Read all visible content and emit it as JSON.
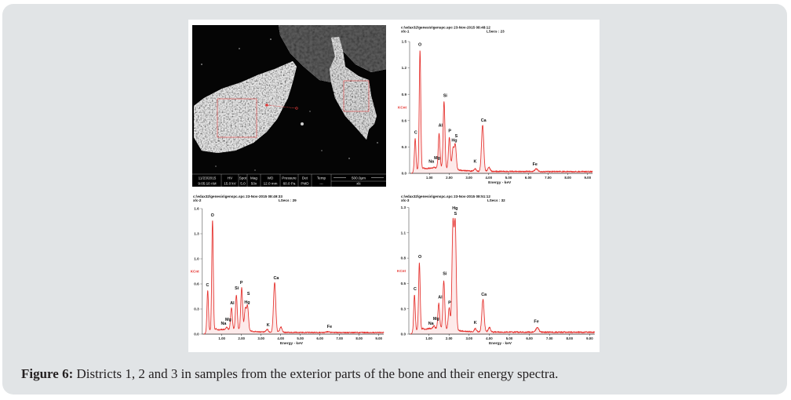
{
  "figure": {
    "caption_label": "Figure 6:",
    "caption_text": " Districts 1, 2 and 3 in samples from the exterior parts of the bone and their energy spectra."
  },
  "colors": {
    "panel_background": "#e1e4e6",
    "spectrum_line": "#e5302c",
    "ylabel": "#e5302c",
    "sem_annotation": "#e03a3a"
  },
  "sem_image": {
    "databar": {
      "columns": [
        {
          "header": "11/23/2015",
          "value": "9:05:10 AM"
        },
        {
          "header": "HV",
          "value": "15.0 kV"
        },
        {
          "header": "Spot",
          "value": "5.0"
        },
        {
          "header": "Mag",
          "value": "50x"
        },
        {
          "header": "WD",
          "value": "12.0 mm"
        },
        {
          "header": "Pressure",
          "value": "60.0 Pa"
        },
        {
          "header": "Det",
          "value": "PMD"
        },
        {
          "header": "Temp",
          "value": "---"
        }
      ],
      "scale_bar": "500.0µm",
      "label": "xlc"
    }
  },
  "chart_data": [
    {
      "type": "line",
      "title": "c:\\edax32\\genesis\\genspc.spc  23-Nov-2015 08:48:12",
      "sample": "xlc-1",
      "lsecs": "LSecs : 23",
      "xlabel": "Energy - keV",
      "ylabel": "KCnt",
      "xlim": [
        0,
        9.25
      ],
      "ylim": [
        0,
        1.5
      ],
      "grid": false,
      "x_ticks": [
        1,
        2,
        3,
        4,
        5,
        6,
        7,
        8,
        9
      ],
      "x_tick_labels": [
        "1.00",
        "2.00",
        "3.00",
        "4.00",
        "5.00",
        "6.00",
        "7.00",
        "8.00",
        "9.00"
      ],
      "y_ticks": [
        0,
        0.3,
        0.6,
        0.9,
        1.2,
        1.5
      ],
      "y_tick_labels": [
        "0.0",
        "0.3",
        "0.6",
        "0.9",
        "1.2",
        "1.5"
      ],
      "peaks": [
        {
          "element": "C",
          "energy": 0.28,
          "kcnt": 0.4,
          "label_at": [
            0.31,
            0.45
          ]
        },
        {
          "element": "O",
          "energy": 0.525,
          "kcnt": 1.4,
          "label_at": [
            0.52,
            1.45
          ]
        },
        {
          "element": "",
          "energy": 0.7,
          "kcnt": 0.06
        },
        {
          "element": "Na",
          "energy": 1.04,
          "kcnt": 0.05,
          "label_at": [
            1.1,
            0.12
          ]
        },
        {
          "element": "Mg",
          "energy": 1.25,
          "kcnt": 0.07,
          "label_at": [
            1.39,
            0.16
          ]
        },
        {
          "element": "Al",
          "energy": 1.49,
          "kcnt": 0.45,
          "label_at": [
            1.56,
            0.53
          ]
        },
        {
          "element": "Si",
          "energy": 1.74,
          "kcnt": 0.82,
          "label_at": [
            1.8,
            0.87
          ]
        },
        {
          "element": "P",
          "energy": 2.01,
          "kcnt": 0.41,
          "label_at": [
            2.03,
            0.47
          ]
        },
        {
          "element": "Hg",
          "energy": 2.195,
          "kcnt": 0.3,
          "label_at": [
            2.26,
            0.36
          ]
        },
        {
          "element": "S",
          "energy": 2.31,
          "kcnt": 0.34,
          "label_at": [
            2.36,
            0.41
          ]
        },
        {
          "element": "K",
          "energy": 3.31,
          "kcnt": 0.05,
          "label_at": [
            3.31,
            0.12
          ]
        },
        {
          "element": "Ca",
          "energy": 3.69,
          "kcnt": 0.55,
          "label_at": [
            3.74,
            0.59
          ]
        },
        {
          "element": "",
          "energy": 4.01,
          "kcnt": 0.07
        },
        {
          "element": "Fe",
          "energy": 6.4,
          "kcnt": 0.05,
          "label_at": [
            6.34,
            0.09
          ]
        }
      ]
    },
    {
      "type": "line",
      "title": "c:\\edax32\\genesis\\genspc.spc  23-Nov-2015 08:49:33",
      "sample": "xlc-2",
      "lsecs": "LSecs : 29",
      "xlabel": "Energy - keV",
      "ylabel": "KCnt",
      "xlim": [
        0,
        9.25
      ],
      "ylim": [
        0,
        1.6
      ],
      "grid": false,
      "x_ticks": [
        1,
        2,
        3,
        4,
        5,
        6,
        7,
        8,
        9
      ],
      "x_tick_labels": [
        "1.00",
        "2.00",
        "3.00",
        "4.00",
        "5.00",
        "6.00",
        "7.00",
        "8.00",
        "9.00"
      ],
      "y_ticks": [
        0,
        0.32,
        0.64,
        0.96,
        1.28,
        1.6
      ],
      "y_tick_labels": [
        "0.0",
        "0.3",
        "0.6",
        "1.0",
        "1.3",
        "1.6"
      ],
      "peaks": [
        {
          "element": "C",
          "energy": 0.28,
          "kcnt": 0.56,
          "label_at": [
            0.27,
            0.61
          ]
        },
        {
          "element": "O",
          "energy": 0.525,
          "kcnt": 1.46,
          "label_at": [
            0.52,
            1.5
          ]
        },
        {
          "element": "",
          "energy": 0.7,
          "kcnt": 0.07
        },
        {
          "element": "Na",
          "energy": 1.04,
          "kcnt": 0.06,
          "label_at": [
            1.09,
            0.12
          ]
        },
        {
          "element": "Mg",
          "energy": 1.25,
          "kcnt": 0.09,
          "label_at": [
            1.33,
            0.17
          ]
        },
        {
          "element": "Al",
          "energy": 1.49,
          "kcnt": 0.34,
          "label_at": [
            1.53,
            0.38
          ]
        },
        {
          "element": "Si",
          "energy": 1.74,
          "kcnt": 0.5,
          "label_at": [
            1.76,
            0.57
          ]
        },
        {
          "element": "P",
          "energy": 2.01,
          "kcnt": 0.59,
          "label_at": [
            2.0,
            0.64
          ]
        },
        {
          "element": "Hg",
          "energy": 2.195,
          "kcnt": 0.34,
          "label_at": [
            2.29,
            0.39
          ]
        },
        {
          "element": "S",
          "energy": 2.31,
          "kcnt": 0.37,
          "label_at": [
            2.36,
            0.5
          ]
        },
        {
          "element": "K",
          "energy": 3.31,
          "kcnt": 0.06,
          "label_at": [
            3.36,
            0.1
          ]
        },
        {
          "element": "Ca",
          "energy": 3.69,
          "kcnt": 0.66,
          "label_at": [
            3.77,
            0.7
          ]
        },
        {
          "element": "",
          "energy": 4.01,
          "kcnt": 0.09
        },
        {
          "element": "Fe",
          "energy": 6.4,
          "kcnt": 0.03,
          "label_at": [
            6.49,
            0.08
          ]
        }
      ]
    },
    {
      "type": "line",
      "title": "c:\\edax32\\genesis\\genspc.spc  23-Nov-2015 08:51:12",
      "sample": "xlc-3",
      "lsecs": "LSecs : 32",
      "xlabel": "Energy - keV",
      "ylabel": "KCnt",
      "xlim": [
        0,
        9.25
      ],
      "ylim": [
        0,
        1.35
      ],
      "grid": false,
      "x_ticks": [
        1,
        2,
        3,
        4,
        5,
        6,
        7,
        8,
        9
      ],
      "x_tick_labels": [
        "1.00",
        "2.00",
        "3.00",
        "4.00",
        "5.00",
        "6.00",
        "7.00",
        "8.00",
        "9.00"
      ],
      "y_ticks": [
        0,
        0.27,
        0.54,
        0.81,
        1.08,
        1.35
      ],
      "y_tick_labels": [
        "0.0",
        "0.3",
        "0.5",
        "0.8",
        "1.1",
        "1.3"
      ],
      "peaks": [
        {
          "element": "C",
          "energy": 0.28,
          "kcnt": 0.42,
          "label_at": [
            0.31,
            0.47
          ]
        },
        {
          "element": "O",
          "energy": 0.525,
          "kcnt": 0.76,
          "label_at": [
            0.55,
            0.81
          ]
        },
        {
          "element": "",
          "energy": 0.7,
          "kcnt": 0.06
        },
        {
          "element": "Na",
          "energy": 1.04,
          "kcnt": 0.06,
          "label_at": [
            1.1,
            0.1
          ]
        },
        {
          "element": "Mg",
          "energy": 1.25,
          "kcnt": 0.09,
          "label_at": [
            1.36,
            0.15
          ]
        },
        {
          "element": "Al",
          "energy": 1.49,
          "kcnt": 0.33,
          "label_at": [
            1.56,
            0.38
          ]
        },
        {
          "element": "Si",
          "energy": 1.74,
          "kcnt": 0.57,
          "label_at": [
            1.79,
            0.63
          ]
        },
        {
          "element": "P",
          "energy": 2.01,
          "kcnt": 0.28,
          "label_at": [
            2.03,
            0.32
          ]
        },
        {
          "element": "Hg",
          "energy": 2.195,
          "kcnt": 1.22,
          "label_at": [
            2.3,
            1.33
          ]
        },
        {
          "element": "S",
          "energy": 2.31,
          "kcnt": 1.22,
          "label_at": [
            2.32,
            1.27
          ]
        },
        {
          "element": "K",
          "energy": 3.31,
          "kcnt": 0.06,
          "label_at": [
            3.31,
            0.11
          ]
        },
        {
          "element": "Ca",
          "energy": 3.69,
          "kcnt": 0.37,
          "label_at": [
            3.74,
            0.41
          ]
        },
        {
          "element": "",
          "energy": 4.01,
          "kcnt": 0.07
        },
        {
          "element": "Fe",
          "energy": 6.4,
          "kcnt": 0.07,
          "label_at": [
            6.35,
            0.12
          ]
        }
      ]
    }
  ]
}
